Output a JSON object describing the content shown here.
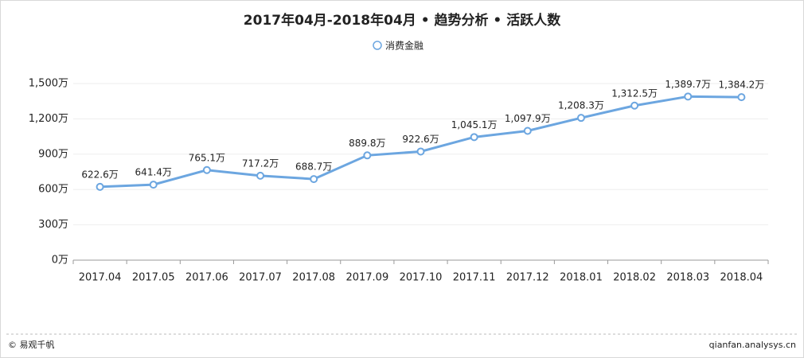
{
  "chart_data": {
    "type": "line",
    "title": "2017年04月-2018年04月 • 趋势分析 • 活跃人数",
    "categories": [
      "2017.04",
      "2017.05",
      "2017.06",
      "2017.07",
      "2017.08",
      "2017.09",
      "2017.10",
      "2017.11",
      "2017.12",
      "2018.01",
      "2018.02",
      "2018.03",
      "2018.04"
    ],
    "series": [
      {
        "name": "消费金融",
        "color": "#6ca6e0",
        "values": [
          622.6,
          641.4,
          765.1,
          717.2,
          688.7,
          889.8,
          922.6,
          1045.1,
          1097.9,
          1208.3,
          1312.5,
          1389.7,
          1384.2
        ],
        "value_labels": [
          "622.6万",
          "641.4万",
          "765.1万",
          "717.2万",
          "688.7万",
          "889.8万",
          "922.6万",
          "1,045.1万",
          "1,097.9万",
          "1,208.3万",
          "1,312.5万",
          "1,389.7万",
          "1,384.2万"
        ]
      }
    ],
    "ylim": [
      0,
      1500
    ],
    "yticks": [
      {
        "value": 0,
        "label": "0万"
      },
      {
        "value": 300,
        "label": "300万"
      },
      {
        "value": 600,
        "label": "600万"
      },
      {
        "value": 900,
        "label": "900万"
      },
      {
        "value": 1200,
        "label": "1,200万"
      },
      {
        "value": 1500,
        "label": "1,500万"
      }
    ],
    "grid": true,
    "legend": "top",
    "footer_left": "© 易观千帆",
    "footer_right": "qianfan.analysys.cn"
  }
}
